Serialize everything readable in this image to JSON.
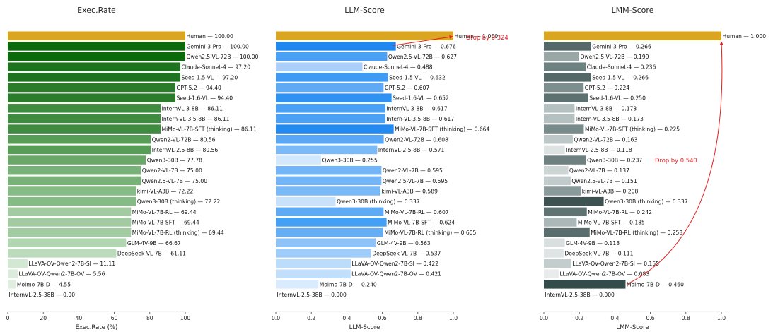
{
  "chart_data": [
    {
      "type": "bar",
      "orientation": "horizontal",
      "title": "Exec.Rate",
      "xlabel": "Exec.Rate (%)",
      "xlim": [
        0,
        100
      ],
      "ticks": [
        0,
        20,
        40,
        60,
        80,
        100
      ],
      "tick_labels": [
        "0",
        "20",
        "40",
        "60",
        "80",
        "100"
      ],
      "label_format": "fixed2",
      "grid": false,
      "categories": [
        "Human",
        "Gemini-3-Pro",
        "Qwen2.5-VL-72B",
        "Claude-Sonnet-4",
        "Seed-1.5-VL",
        "GPT-5.2",
        "Seed-1.6-VL",
        "InternVL-3-8B",
        "Intern-VL-3.5-8B",
        "MiMo-VL-7B-SFT (thinking)",
        "Qwen2-VL-72B",
        "InternVL-2.5-8B",
        "Qwen3-30B",
        "Qwen2-VL-7B",
        "Qwen2.5-VL-7B",
        "kimi-VL-A3B",
        "Qwen3-30B (thinking)",
        "MiMo-VL-7B-RL",
        "MiMo-VL-7B-SFT",
        "MiMo-VL-7B-RL (thinking)",
        "GLM-4V-9B",
        "DeepSeek-VL-7B",
        "LLaVA-OV-Qwen2-7B-SI",
        "LLaVA-OV-Qwen2-7B-OV",
        "Molmo-7B-D",
        "InternVL-2.5-38B"
      ],
      "values": [
        100.0,
        100.0,
        100.0,
        97.2,
        97.2,
        94.4,
        94.4,
        86.11,
        86.11,
        86.11,
        80.56,
        80.56,
        77.78,
        75.0,
        75.0,
        72.22,
        72.22,
        69.44,
        69.44,
        69.44,
        66.67,
        61.11,
        11.11,
        5.56,
        4.55,
        0.0
      ],
      "colors": [
        "#daa520",
        "#0b6b0b",
        "#0b6b0b",
        "#1e731e",
        "#1e731e",
        "#2a7c2a",
        "#2a7c2a",
        "#3f8b3f",
        "#3f8b3f",
        "#3f8b3f",
        "#579c57",
        "#579c57",
        "#69a869",
        "#79b279",
        "#79b279",
        "#86bb86",
        "#86bb86",
        "#a2cba2",
        "#a2cba2",
        "#a2cba2",
        "#b2d5b2",
        "#bcdabc",
        "#d2e8d2",
        "#dcecdc",
        "#e0eee0",
        "#ffffff"
      ],
      "annotations": []
    },
    {
      "type": "bar",
      "orientation": "horizontal",
      "title": "LLM-Score",
      "xlabel": "LLM-Score",
      "xlim": [
        0,
        1
      ],
      "ticks": [
        0,
        0.2,
        0.4,
        0.6,
        0.8,
        1.0
      ],
      "tick_labels": [
        "0.0",
        "0.2",
        "0.4",
        "0.6",
        "0.8",
        "1.0"
      ],
      "label_format": "fixed3",
      "grid": false,
      "categories": [
        "Human",
        "Gemini-3-Pro",
        "Qwen2.5-VL-72B",
        "Claude-Sonnet-4",
        "Seed-1.5-VL",
        "GPT-5.2",
        "Seed-1.6-VL",
        "InternVL-3-8B",
        "Intern-VL-3.5-8B",
        "MiMo-VL-7B-SFT (thinking)",
        "Qwen2-VL-72B",
        "InternVL-2.5-8B",
        "Qwen3-30B",
        "Qwen2-VL-7B",
        "Qwen2.5-VL-7B",
        "kimi-VL-A3B",
        "Qwen3-30B (thinking)",
        "MiMo-VL-7B-RL",
        "MiMo-VL-7B-SFT",
        "MiMo-VL-7B-RL (thinking)",
        "GLM-4V-9B",
        "DeepSeek-VL-7B",
        "LLaVA-OV-Qwen2-7B-SI",
        "LLaVA-OV-Qwen2-7B-OV",
        "Molmo-7B-D",
        "InternVL-2.5-38B"
      ],
      "values": [
        1.0,
        0.676,
        0.627,
        0.488,
        0.632,
        0.607,
        0.652,
        0.617,
        0.617,
        0.664,
        0.608,
        0.571,
        0.255,
        0.595,
        0.595,
        0.589,
        0.337,
        0.607,
        0.624,
        0.605,
        0.563,
        0.537,
        0.422,
        0.421,
        0.24,
        0.0
      ],
      "colors": [
        "#daa520",
        "#1e88f0",
        "#4aa0f4",
        "#a9cffa",
        "#3e9af3",
        "#5faaf5",
        "#2f92f2",
        "#4aa0f4",
        "#4aa0f4",
        "#238af1",
        "#5aa8f5",
        "#7bb9f7",
        "#d3e8fc",
        "#73b5f7",
        "#73b5f7",
        "#7ab9f7",
        "#c9e2fb",
        "#5faaf5",
        "#43a0f4",
        "#65aef6",
        "#8fc3f8",
        "#9fccf9",
        "#bcdcfb",
        "#c1defb",
        "#d9ebfd",
        "#ffffff"
      ],
      "annotations": [
        {
          "text": "Drop by 0.324",
          "color": "#e32020",
          "from_index": 1,
          "to_index": 0
        }
      ]
    },
    {
      "type": "bar",
      "orientation": "horizontal",
      "title": "LMM-Score",
      "xlabel": "LMM-Score",
      "xlim": [
        0,
        1
      ],
      "ticks": [
        0,
        0.2,
        0.4,
        0.6,
        0.8,
        1.0
      ],
      "tick_labels": [
        "0.0",
        "0.2",
        "0.4",
        "0.6",
        "0.8",
        "1.0"
      ],
      "label_format": "fixed3",
      "grid": false,
      "categories": [
        "Human",
        "Gemini-3-Pro",
        "Qwen2.5-VL-72B",
        "Claude-Sonnet-4",
        "Seed-1.5-VL",
        "GPT-5.2",
        "Seed-1.6-VL",
        "InternVL-3-8B",
        "Intern-VL-3.5-8B",
        "MiMo-VL-7B-SFT (thinking)",
        "Qwen2-VL-72B",
        "InternVL-2.5-8B",
        "Qwen3-30B",
        "Qwen2-VL-7B",
        "Qwen2.5-VL-7B",
        "kimi-VL-A3B",
        "Qwen3-30B (thinking)",
        "MiMo-VL-7B-RL",
        "MiMo-VL-7B-SFT",
        "MiMo-VL-7B-RL (thinking)",
        "GLM-4V-9B",
        "DeepSeek-VL-7B",
        "LLaVA-OV-Qwen2-7B-SI",
        "LLaVA-OV-Qwen2-7B-OV",
        "Molmo-7B-D",
        "InternVL-2.5-38B"
      ],
      "values": [
        1.0,
        0.266,
        0.199,
        0.236,
        0.266,
        0.224,
        0.25,
        0.173,
        0.173,
        0.225,
        0.163,
        0.118,
        0.237,
        0.137,
        0.151,
        0.208,
        0.337,
        0.242,
        0.185,
        0.258,
        0.118,
        0.111,
        0.155,
        0.083,
        0.46,
        0.0
      ],
      "colors": [
        "#daa520",
        "#55696a",
        "#99a7a7",
        "#6f8282",
        "#556868",
        "#7c8e8e",
        "#5e7171",
        "#b5c0c0",
        "#b5c0c0",
        "#798b8b",
        "#bdc7c7",
        "#dde2e2",
        "#6e8080",
        "#cdd4d4",
        "#c2cbcb",
        "#8a9a9a",
        "#3f5252",
        "#5f7373",
        "#acb7b7",
        "#5a6d6d",
        "#d9dfdf",
        "#dfe4e4",
        "#c4cdcd",
        "#e8ecec",
        "#344b4b",
        "#ffffff"
      ],
      "annotations": [
        {
          "text": "Drop by 0.540",
          "color": "#e32020",
          "from_index": 24,
          "to_index": 0
        }
      ]
    }
  ]
}
